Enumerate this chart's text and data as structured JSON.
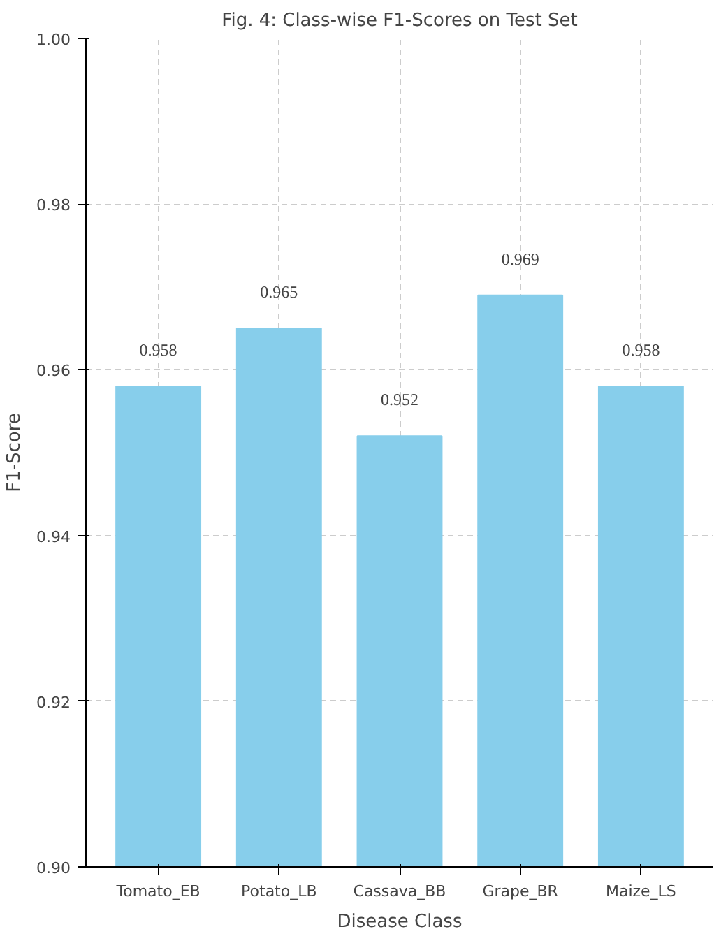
{
  "chart_data": {
    "type": "bar",
    "title": "Fig. 4: Class-wise F1-Scores on Test Set",
    "xlabel": "Disease Class",
    "ylabel": "F1-Score",
    "categories": [
      "Tomato_EB",
      "Potato_LB",
      "Cassava_BB",
      "Grape_BR",
      "Maize_LS"
    ],
    "values": [
      0.958,
      0.965,
      0.952,
      0.969,
      0.958
    ],
    "color": "#87ceeb",
    "ylim": [
      0.9,
      1.0
    ],
    "yticks": [
      {
        "value": 0.9,
        "label": "0.90"
      },
      {
        "value": 0.92,
        "label": "0.92"
      },
      {
        "value": 0.94,
        "label": "0.94"
      },
      {
        "value": 0.96,
        "label": "0.96"
      },
      {
        "value": 0.98,
        "label": "0.98"
      },
      {
        "value": 1.0,
        "label": "1.00"
      }
    ],
    "grid": true,
    "data_labels": true
  }
}
